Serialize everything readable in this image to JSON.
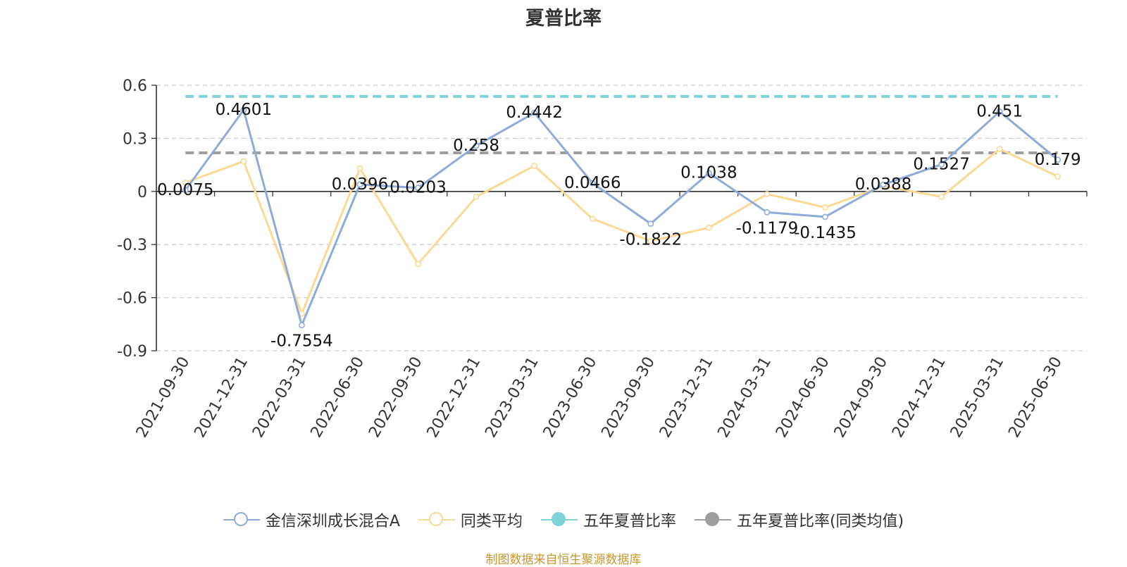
{
  "chart_data": {
    "type": "line",
    "title": "夏普比率",
    "categories": [
      "2021-09-30",
      "2021-12-31",
      "2022-03-31",
      "2022-06-30",
      "2022-09-30",
      "2022-12-31",
      "2023-03-31",
      "2023-06-30",
      "2023-09-30",
      "2023-12-31",
      "2024-03-31",
      "2024-06-30",
      "2024-09-30",
      "2024-12-31",
      "2025-03-31",
      "2025-06-30"
    ],
    "series": [
      {
        "name": "金信深圳成长混合A",
        "color": "#8eabd9",
        "values": [
          0.0075,
          0.4601,
          -0.7554,
          0.0396,
          0.0203,
          0.258,
          0.4442,
          0.0466,
          -0.1822,
          0.1038,
          -0.1179,
          -0.1435,
          0.0388,
          0.1527,
          0.451,
          0.179
        ],
        "labels": [
          "0.0075",
          "0.4601",
          "-0.7554",
          "0.0396",
          "0.0203",
          "0.258",
          "0.4442",
          "0.0466",
          "-0.1822",
          "0.1038",
          "-0.1179",
          "-0.1435",
          "0.0388",
          "0.1527",
          "0.451",
          "0.179"
        ]
      },
      {
        "name": "同类平均",
        "color": "#fbd995",
        "values": [
          0.05,
          0.17,
          -0.69,
          0.13,
          -0.41,
          -0.03,
          0.145,
          -0.155,
          -0.28,
          -0.205,
          -0.015,
          -0.09,
          0.03,
          -0.03,
          0.24,
          0.085
        ]
      }
    ],
    "reference_lines": [
      {
        "name": "五年夏普比率",
        "color": "#7fd3d6",
        "value": 0.537
      },
      {
        "name": "五年夏普比率(同类均值)",
        "color": "#9e9e9e",
        "value": 0.218
      }
    ],
    "y_ticks": [
      "0.6",
      "0.3",
      "0",
      "-0.3",
      "-0.6",
      "-0.9"
    ],
    "ylim": [
      -0.9,
      0.6
    ],
    "grid": true,
    "legend_position": "bottom"
  },
  "source_note": "制图数据来自恒生聚源数据库"
}
